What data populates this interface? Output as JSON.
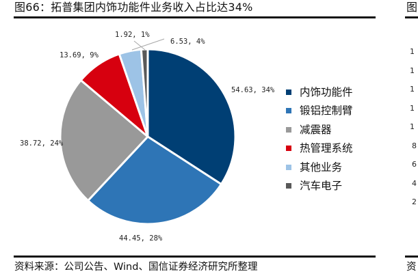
{
  "figure": {
    "title": "图66：拓普集团内饰功能件业务收入占比达34%",
    "source": "资料来源：公司公告、Wind、国信证券经济研究所整理"
  },
  "chart_data": {
    "type": "pie",
    "title": "图66：拓普集团内饰功能件业务收入占比达34%",
    "start_angle": "12 o'clock, clockwise",
    "legend_position": "right",
    "categories": [
      "内饰功能件",
      "锻铝控制臂",
      "减震器",
      "热管理系统",
      "其他业务",
      "汽车电子"
    ],
    "values": [
      54.63,
      44.45,
      38.72,
      13.69,
      6.53,
      1.92
    ],
    "percent_labels": [
      "34%",
      "28%",
      "24%",
      "9%",
      "4%",
      "1%"
    ],
    "data_labels": [
      "54.63, 34%",
      "44.45, 28%",
      "38.72, 24%",
      "13.69, 9%",
      "6.53, 4%",
      "1.92, 1%"
    ],
    "colors": [
      "#003f74",
      "#2e75b6",
      "#999999",
      "#d7000f",
      "#9dc3e6",
      "#595959"
    ]
  },
  "legend": {
    "items": [
      {
        "label": "内饰功能件",
        "color": "#003f74"
      },
      {
        "label": "锻铝控制臂",
        "color": "#2e75b6"
      },
      {
        "label": "减震器",
        "color": "#999999"
      },
      {
        "label": "热管理系统",
        "color": "#d7000f"
      },
      {
        "label": "其他业务",
        "color": "#9dc3e6"
      },
      {
        "label": "汽车电子",
        "color": "#595959"
      }
    ]
  },
  "adjacent_panel": {
    "title_fragment": "图",
    "source_fragment": "资",
    "tick_fragments": [
      "1",
      "1",
      "1",
      "1",
      "1",
      "8",
      "6",
      "4",
      "2"
    ]
  }
}
